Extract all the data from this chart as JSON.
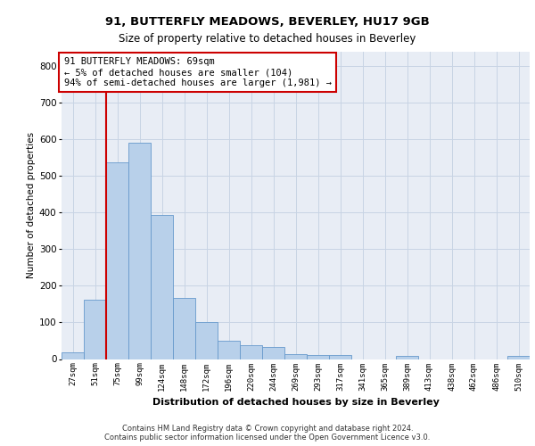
{
  "title1": "91, BUTTERFLY MEADOWS, BEVERLEY, HU17 9GB",
  "title2": "Size of property relative to detached houses in Beverley",
  "xlabel": "Distribution of detached houses by size in Beverley",
  "ylabel": "Number of detached properties",
  "bar_labels": [
    "27sqm",
    "51sqm",
    "75sqm",
    "99sqm",
    "124sqm",
    "148sqm",
    "172sqm",
    "196sqm",
    "220sqm",
    "244sqm",
    "269sqm",
    "293sqm",
    "317sqm",
    "341sqm",
    "365sqm",
    "389sqm",
    "413sqm",
    "438sqm",
    "462sqm",
    "486sqm",
    "510sqm"
  ],
  "bar_values": [
    18,
    163,
    537,
    591,
    393,
    168,
    101,
    50,
    37,
    32,
    13,
    12,
    10,
    0,
    0,
    8,
    0,
    0,
    0,
    0,
    8
  ],
  "bar_color": "#b8d0ea",
  "bar_edge_color": "#6699cc",
  "vline_color": "#cc0000",
  "annotation_text": "91 BUTTERFLY MEADOWS: 69sqm\n← 5% of detached houses are smaller (104)\n94% of semi-detached houses are larger (1,981) →",
  "annotation_box_facecolor": "#ffffff",
  "annotation_box_edgecolor": "#cc0000",
  "ylim": [
    0,
    840
  ],
  "yticks": [
    0,
    100,
    200,
    300,
    400,
    500,
    600,
    700,
    800
  ],
  "grid_color": "#c8d4e4",
  "background_color": "#e8edf5",
  "footer_text": "Contains HM Land Registry data © Crown copyright and database right 2024.\nContains public sector information licensed under the Open Government Licence v3.0."
}
